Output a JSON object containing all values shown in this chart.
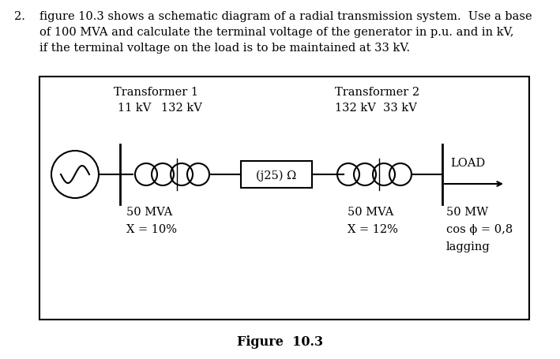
{
  "title": "Figure  10.3",
  "transformer1_label": "Transformer 1",
  "transformer2_label": "Transformer 2",
  "t1_voltage_left": "11 kV",
  "t1_voltage_right": "132 kV",
  "t2_voltage_left": "132 kV",
  "t2_voltage_right": "33 kV",
  "t1_mva": "50 MVA",
  "t1_x": "X = 10%",
  "t2_mva": "50 MVA",
  "t2_x": "X = 12%",
  "load_label": "LOAD",
  "load_mw": "50 MW",
  "load_pf": "cos ϕ = 0,8",
  "load_pf_note": "lagging",
  "impedance_label": "(j25) Ω",
  "background_color": "#ffffff",
  "box_color": "#000000",
  "text_color": "#000000",
  "problem_line1": "figure 10.3 shows a schematic diagram of a radial transmission system.  Use a base",
  "problem_line2": "of 100 MVA and calculate the terminal voltage of the generator in p.u. and in kV,",
  "problem_line3": "if the terminal voltage on the load is to be maintained at 33 kV."
}
